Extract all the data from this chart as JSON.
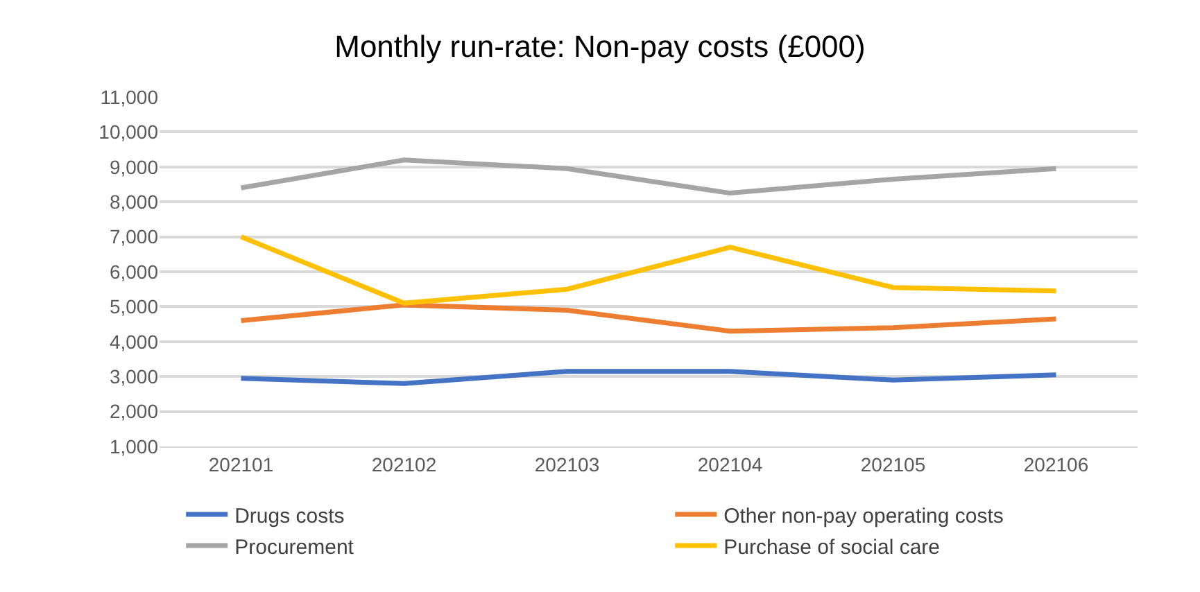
{
  "chart_data": {
    "type": "line",
    "title": "Monthly run-rate: Non-pay costs (£000)",
    "categories": [
      "202101",
      "202102",
      "202103",
      "202104",
      "202105",
      "202106"
    ],
    "series": [
      {
        "name": "Drugs costs",
        "color": "#4472c4",
        "values": [
          2950,
          2800,
          3150,
          3150,
          2900,
          3050
        ]
      },
      {
        "name": "Other non-pay operating costs",
        "color": "#ed7d31",
        "values": [
          4600,
          5050,
          4900,
          4300,
          4400,
          4650
        ]
      },
      {
        "name": "Procurement",
        "color": "#a5a5a5",
        "values": [
          8400,
          9200,
          8950,
          8250,
          8650,
          8950
        ]
      },
      {
        "name": "Purchase of social care",
        "color": "#ffc000",
        "values": [
          7000,
          5100,
          5500,
          6700,
          5550,
          5450
        ]
      }
    ],
    "ylim": [
      1000,
      11000
    ],
    "yticks": [
      {
        "value": 1000,
        "label": "1,000"
      },
      {
        "value": 2000,
        "label": "2,000"
      },
      {
        "value": 3000,
        "label": "3,000"
      },
      {
        "value": 4000,
        "label": "4,000"
      },
      {
        "value": 5000,
        "label": "5,000"
      },
      {
        "value": 6000,
        "label": "6,000"
      },
      {
        "value": 7000,
        "label": "7,000"
      },
      {
        "value": 8000,
        "label": "8,000"
      },
      {
        "value": 9000,
        "label": "9,000"
      },
      {
        "value": 10000,
        "label": "10,000"
      },
      {
        "value": 11000,
        "label": "11,000"
      }
    ],
    "grid": "y",
    "legend": "bottom",
    "marker": "none",
    "line_style": "solid"
  }
}
